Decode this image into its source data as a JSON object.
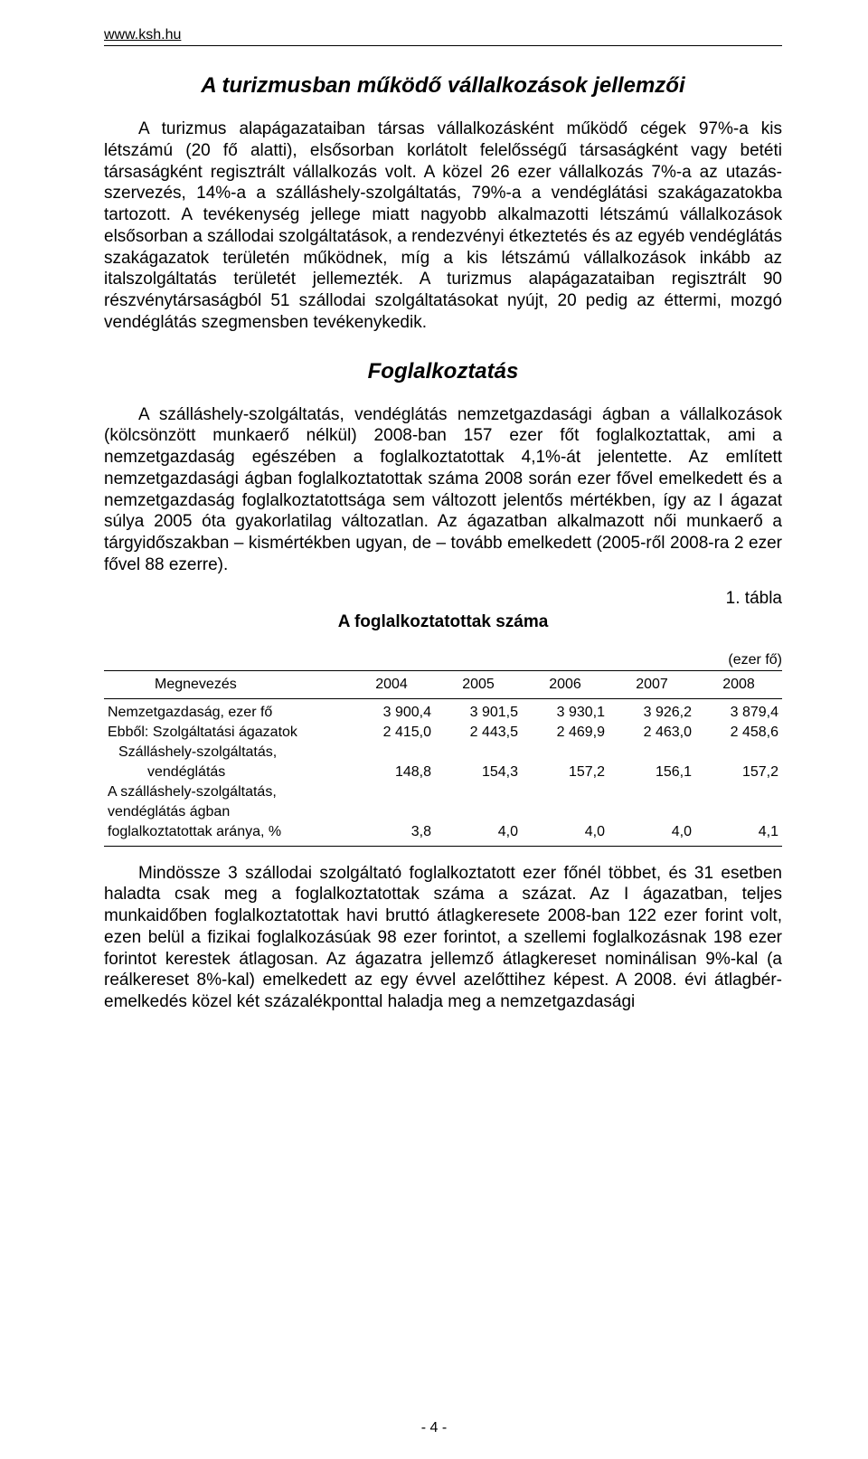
{
  "site_url": "www.ksh.hu",
  "heading1": "A turizmusban működő vállalkozások jellemzői",
  "para1": "A turizmus alapágazataiban társas vállalkozásként működő cégek 97%-a kis létszámú (20 fő alatti), elsősorban korlátolt felelősségű társaságként vagy betéti társaságként regisztrált vállalkozás volt. A közel 26 ezer vállalkozás 7%-a az utazás-szervezés, 14%-a a szálláshely-szolgáltatás, 79%-a a vendéglátási szakágazatokba tartozott. A tevékenység jellege miatt nagyobb alkalmazotti létszámú vállalkozások elsősorban a szállodai szolgáltatások, a rendezvényi étkeztetés és az egyéb vendéglátás szakágazatok területén működnek, míg a kis létszámú vállalkozások inkább az italszolgáltatás területét jellemezték. A turizmus alapágazataiban regisztrált 90 részvénytársaságból 51 szállodai szolgáltatásokat nyújt, 20 pedig az éttermi, mozgó vendéglátás szegmensben tevékenykedik.",
  "heading2": "Foglalkoztatás",
  "para2": "A szálláshely-szolgáltatás, vendéglátás nemzetgazdasági ágban a vállalkozások (kölcsönzött munkaerő nélkül) 2008-ban 157 ezer főt foglalkoztattak, ami a nemzetgazdaság egészében a foglalkoztatottak 4,1%-át jelentette. Az említett nemzetgazdasági ágban foglalkoztatottak száma 2008 során ezer fővel emelkedett és a nemzetgazdaság foglalkoztatottsága sem változott jelentős mértékben, így az I ágazat súlya 2005 óta gyakorlatilag változatlan. Az ágazatban alkalmazott női munkaerő a tárgyidőszakban – kismértékben ugyan, de – tovább emelkedett (2005-ről 2008-ra  2 ezer fővel 88 ezerre).",
  "table": {
    "label_right": "1. tábla",
    "title": "A foglalkoztatottak száma",
    "unit": "(ezer fő)",
    "columns": [
      "Megnevezés",
      "2004",
      "2005",
      "2006",
      "2007",
      "2008"
    ],
    "col_widths_pct": [
      36,
      12.8,
      12.8,
      12.8,
      12.8,
      12.8
    ],
    "rows": [
      {
        "label": "Nemzetgazdaság, ezer fő",
        "indent": 0,
        "values": [
          "3 900,4",
          "3 901,5",
          "3 930,1",
          "3 926,2",
          "3 879,4"
        ]
      },
      {
        "label": "Ebből: Szolgáltatási ágazatok",
        "indent": 0,
        "values": [
          "2 415,0",
          "2 443,5",
          "2 469,9",
          "2 463,0",
          "2 458,6"
        ]
      },
      {
        "label": "Szálláshely-szolgáltatás,",
        "indent": 1,
        "values": [
          "",
          "",
          "",
          "",
          ""
        ]
      },
      {
        "label": "vendéglátás",
        "indent": 2,
        "values": [
          "148,8",
          "154,3",
          "157,2",
          "156,1",
          "157,2"
        ]
      },
      {
        "label": "A szálláshely-szolgáltatás,",
        "indent": 0,
        "values": [
          "",
          "",
          "",
          "",
          ""
        ]
      },
      {
        "label": "vendéglátás ágban",
        "indent": 0,
        "values": [
          "",
          "",
          "",
          "",
          ""
        ]
      },
      {
        "label": "foglalkoztatottak aránya, %",
        "indent": 0,
        "values": [
          "3,8",
          "4,0",
          "4,0",
          "4,0",
          "4,1"
        ]
      }
    ]
  },
  "para3": "Mindössze 3 szállodai szolgáltató foglalkoztatott ezer főnél többet, és 31 esetben haladta csak meg a foglalkoztatottak száma a százat. Az I ágazatban, teljes munkaidőben foglalkoztatottak havi bruttó átlagkeresete 2008-ban 122 ezer forint volt, ezen belül a fizikai foglalkozásúak 98 ezer forintot, a szellemi foglalkozásnak 198 ezer forintot kerestek átlagosan. Az ágazatra jellemző átlagkereset nominálisan 9%-kal (a reálkereset 8%-kal) emelkedett az egy évvel azelőttihez képest. A 2008. évi átlagbér-emelkedés közel két százalékponttal haladja meg a nemzetgazdasági",
  "page_number": "- 4 -"
}
